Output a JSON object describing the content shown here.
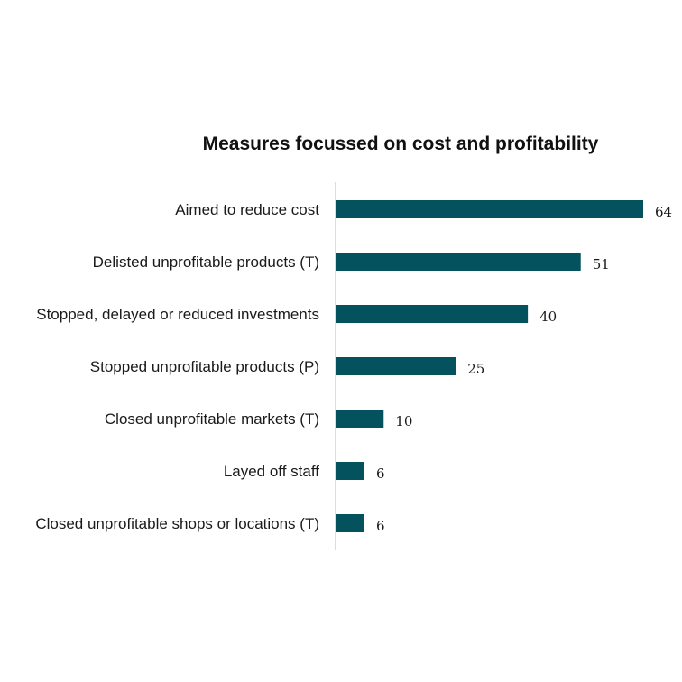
{
  "chart_data": {
    "type": "bar",
    "orientation": "horizontal",
    "title": "Measures focussed on cost and profitability",
    "categories": [
      "Aimed to reduce cost",
      "Delisted unprofitable products (T)",
      "Stopped, delayed or reduced investments",
      "Stopped unprofitable products (P)",
      "Closed unprofitable markets (T)",
      "Layed off staff",
      "Closed unprofitable shops or locations (T)"
    ],
    "values": [
      64,
      51,
      40,
      25,
      10,
      6,
      6
    ],
    "xlim": [
      0,
      64
    ],
    "grid": false,
    "legend": "none",
    "colors": {
      "bar": "#05525f",
      "axis": "#d0d0d0"
    }
  }
}
